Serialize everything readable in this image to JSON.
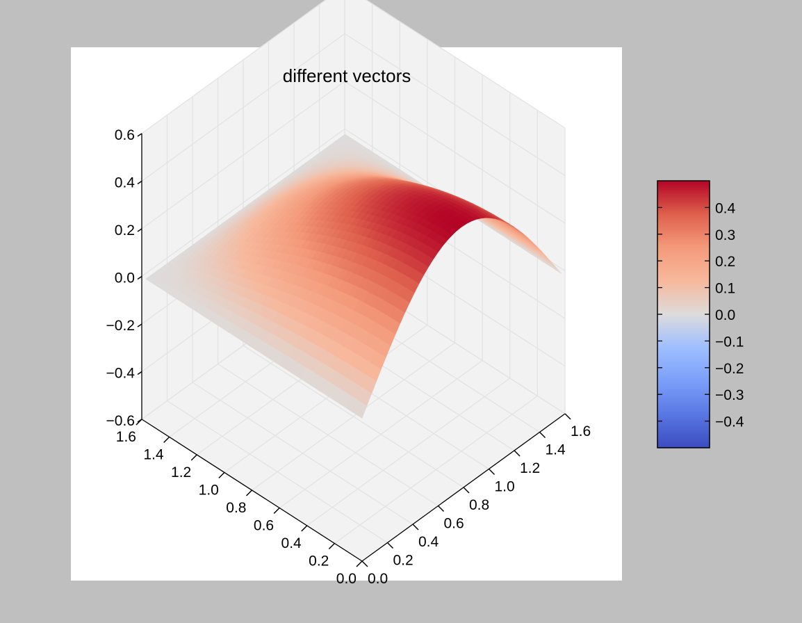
{
  "chart_data": {
    "type": "surface3d",
    "title": "different vectors",
    "xlabel": "",
    "ylabel": "",
    "zlabel": "",
    "xlim": [
      0.0,
      1.6
    ],
    "ylim": [
      0.0,
      1.6
    ],
    "zlim": [
      -0.6,
      0.6
    ],
    "x_ticks": [
      "0.0",
      "0.2",
      "0.4",
      "0.6",
      "0.8",
      "1.0",
      "1.2",
      "1.4",
      "1.6"
    ],
    "y_ticks": [
      "0.0",
      "0.2",
      "0.4",
      "0.6",
      "0.8",
      "1.0",
      "1.2",
      "1.4",
      "1.6"
    ],
    "z_ticks": [
      "−0.6",
      "−0.4",
      "−0.2",
      "0.0",
      "0.2",
      "0.4",
      "0.6"
    ],
    "surface": {
      "x_range": [
        0.0,
        1.5708
      ],
      "y_range": [
        0.0,
        1.5708
      ],
      "max_value": 0.5,
      "min_value": -0.5,
      "colormap": "coolwarm"
    },
    "colorbar": {
      "ticks": [
        "−0.4",
        "−0.3",
        "−0.2",
        "−0.1",
        "0.0",
        "0.1",
        "0.2",
        "0.3",
        "0.4"
      ],
      "range": [
        -0.5,
        0.5
      ]
    },
    "grid": true,
    "colors": {
      "figure_bg": "#bfbfbf",
      "axes_bg": "#ffffff",
      "pane": "#f2f2f2",
      "gridline": "#e3e3e3",
      "colormap_low": "#3b4cc0",
      "colormap_mid": "#dddddd",
      "colormap_high": "#b40426"
    }
  }
}
